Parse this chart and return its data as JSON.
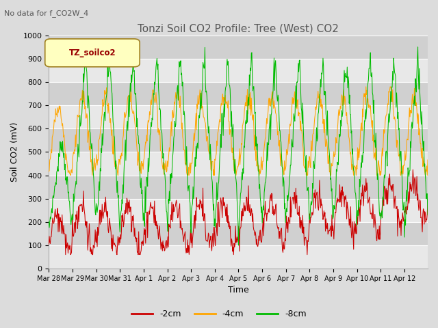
{
  "title": "Tonzi Soil CO2 Profile: Tree (West) CO2",
  "subtitle": "No data for f_CO2W_4",
  "ylabel": "Soil CO2 (mV)",
  "xlabel": "Time",
  "ylim": [
    0,
    1000
  ],
  "legend_label": "TZ_soilco2",
  "series_labels": [
    "-2cm",
    "-4cm",
    "-8cm"
  ],
  "series_colors": [
    "#cc0000",
    "#ffa500",
    "#00bb00"
  ],
  "xtick_labels": [
    "Mar 28",
    "Mar 29",
    "Mar 30",
    "Mar 31",
    "Apr 1",
    "Apr 2",
    "Apr 3",
    "Apr 4",
    "Apr 5",
    "Apr 6",
    "Apr 7",
    "Apr 8",
    "Apr 9",
    "Apr 10",
    "Apr 11",
    "Apr 12"
  ],
  "bg_color": "#dcdcdc",
  "plot_bg_color": "#dcdcdc",
  "fig_bg_color": "#dcdcdc",
  "grid_color": "#ffffff",
  "title_color": "#555555",
  "subtitle_color": "#555555"
}
